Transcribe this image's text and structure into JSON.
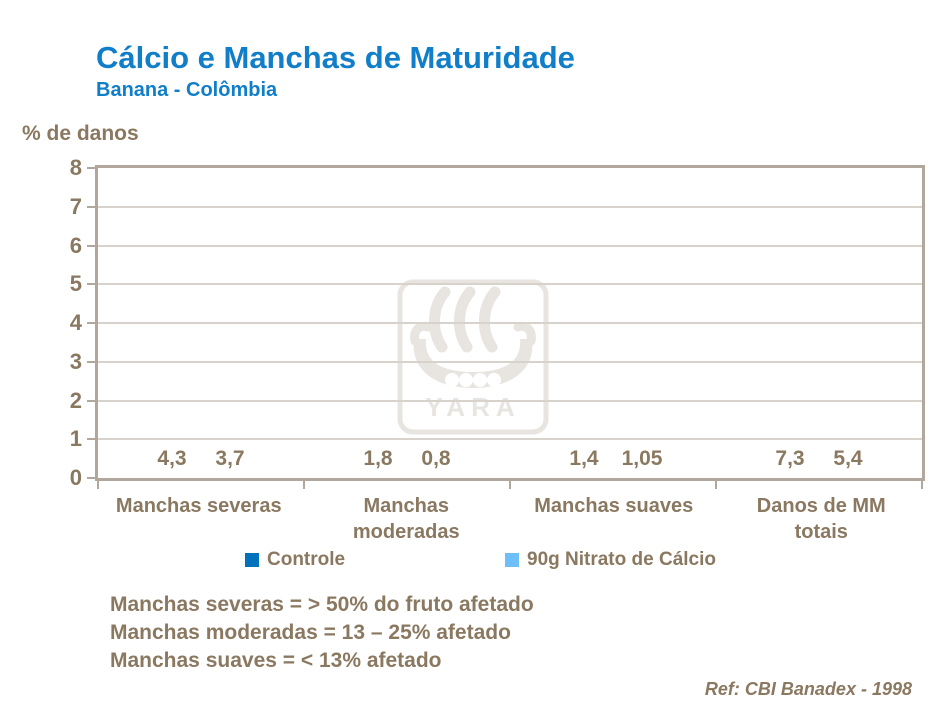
{
  "chart_data": {
    "type": "bar",
    "title": "Cálcio e Manchas de Maturidade",
    "subtitle": "Banana - Colômbia",
    "ylabel": "% de danos",
    "xlabel": "",
    "categories": [
      "Manchas severas",
      "Manchas\nmoderadas",
      "Manchas suaves",
      "Danos de MM\ntotais"
    ],
    "series": [
      {
        "name": "Controle",
        "color": "#0072BC",
        "values": [
          4.3,
          1.8,
          1.4,
          7.3
        ],
        "labels": [
          "4,3",
          "1,8",
          "1,4",
          "7,3"
        ]
      },
      {
        "name": "90g Nitrato de Cálcio",
        "color": "#6EBEF8",
        "values": [
          3.7,
          0.8,
          1.05,
          5.4
        ],
        "labels": [
          "3,7",
          "0,8",
          "1,05",
          "5,4"
        ]
      }
    ],
    "ylim": [
      0,
      8
    ],
    "ytick_step": 1,
    "grid": "horizontal",
    "legend_position": "bottom"
  },
  "slide": {
    "notes": [
      "Manchas severas = > 50% do fruto afetado",
      "Manchas moderadas = 13 – 25% afetado",
      "Manchas suaves = < 13% afetado"
    ],
    "reference": "Ref: CBI Banadex - 1998"
  },
  "watermark": {
    "icon": "yara-viking-ship-logo",
    "text": "YARA"
  },
  "colors": {
    "title_blue": "#107EC8",
    "bar_dark": "#0072BC",
    "bar_light": "#6EBEF8",
    "text_brown": "#8A7860",
    "frame": "#B2A79C",
    "grid": "#D8D2CC",
    "watermark": "#E8E4E0"
  }
}
